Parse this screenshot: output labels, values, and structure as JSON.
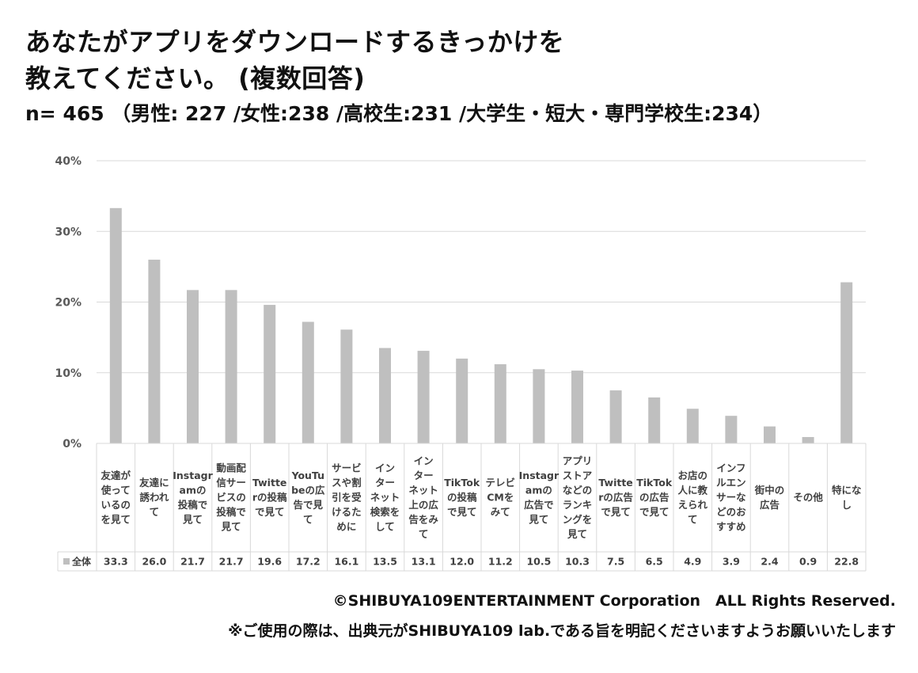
{
  "title": {
    "line1": "あなたがアプリをダウンロードするきっかけを",
    "line2": "教えてください。 (複数回答)"
  },
  "subtitle": "n= 465 （男性: 227 /女性:238 /高校生:231 /大学生・短大・専門学校生:234）",
  "footer": {
    "copyright": "©SHIBUYA109ENTERTAINMENT Corporation　ALL Rights Reserved.",
    "note": "※ご使用の際は、出典元がSHIBUYA109 lab.である旨を明記くださいますようお願いいたします"
  },
  "chart_data": {
    "type": "bar",
    "categories": [
      "友達が使っているのを見て",
      "友達に誘われて",
      "Instagramの投稿で見て",
      "動画配信サービスの投稿で見て",
      "Twitterの投稿で見て",
      "YouTubeの広告で見て",
      "サービスや割引を受けるために",
      "インターネット検索をして",
      "インターネット上の広告をみて",
      "TikTokの投稿で見て",
      "テレビCMをみて",
      "Instagramの広告で見て",
      "アプリストアなどのランキングを見て",
      "Twitterの広告で見て",
      "TikTokの広告で見て",
      "お店の人に教えられて",
      "インフルエンサーなどのおすすめ",
      "街中の広告",
      "その他",
      "特になし"
    ],
    "category_lines": [
      [
        "友達が",
        "使って",
        "いるの",
        "を見て"
      ],
      [
        "友達に",
        "誘われ",
        "て"
      ],
      [
        "Instagr",
        "amの",
        "投稿で",
        "見て"
      ],
      [
        "動画配",
        "信サー",
        "ビスの",
        "投稿で",
        "見て"
      ],
      [
        "Twitte",
        "rの投稿",
        "で見て"
      ],
      [
        "YouTu",
        "beの広",
        "告で見",
        "て"
      ],
      [
        "サービ",
        "スや割",
        "引を受",
        "けるた",
        "めに"
      ],
      [
        "イン",
        "ター",
        "ネット",
        "検索を",
        "して"
      ],
      [
        "イン",
        "ター",
        "ネット",
        "上の広",
        "告をみ",
        "て"
      ],
      [
        "TikTok",
        "の投稿",
        "で見て"
      ],
      [
        "テレビ",
        "CMを",
        "みて"
      ],
      [
        "Instagr",
        "amの",
        "広告で",
        "見て"
      ],
      [
        "アプリ",
        "ストア",
        "などの",
        "ランキ",
        "ングを",
        "見て"
      ],
      [
        "Twitte",
        "rの広告",
        "で見て"
      ],
      [
        "TikTok",
        "の広告",
        "で見て"
      ],
      [
        "お店の",
        "人に教",
        "えられ",
        "て"
      ],
      [
        "インフ",
        "ルエン",
        "サーな",
        "どのお",
        "すすめ"
      ],
      [
        "街中の",
        "広告"
      ],
      [
        "その他"
      ],
      [
        "特にな",
        "し"
      ]
    ],
    "series": [
      {
        "name": "全体",
        "values": [
          33.3,
          26.0,
          21.7,
          21.7,
          19.6,
          17.2,
          16.1,
          13.5,
          13.1,
          12.0,
          11.2,
          10.5,
          10.3,
          7.5,
          6.5,
          4.9,
          3.9,
          2.4,
          0.9,
          22.8
        ],
        "value_labels": [
          "33.3",
          "26.0",
          "21.7",
          "21.7",
          "19.6",
          "17.2",
          "16.1",
          "13.5",
          "13.1",
          "12.0",
          "11.2",
          "10.5",
          "10.3",
          "7.5",
          "6.5",
          "4.9",
          "3.9",
          "2.4",
          "0.9",
          "22.8"
        ],
        "color": "#bfbfbf"
      }
    ],
    "yticks": [
      "0%",
      "10%",
      "20%",
      "30%",
      "40%"
    ],
    "ylim": [
      0,
      40
    ],
    "grid": true,
    "legend": "data-table",
    "colors": {
      "bar": "#bfbfbf",
      "grid": "#d9d9d9",
      "tick_text": "#595959",
      "table_border": "#d9d9d9"
    }
  }
}
